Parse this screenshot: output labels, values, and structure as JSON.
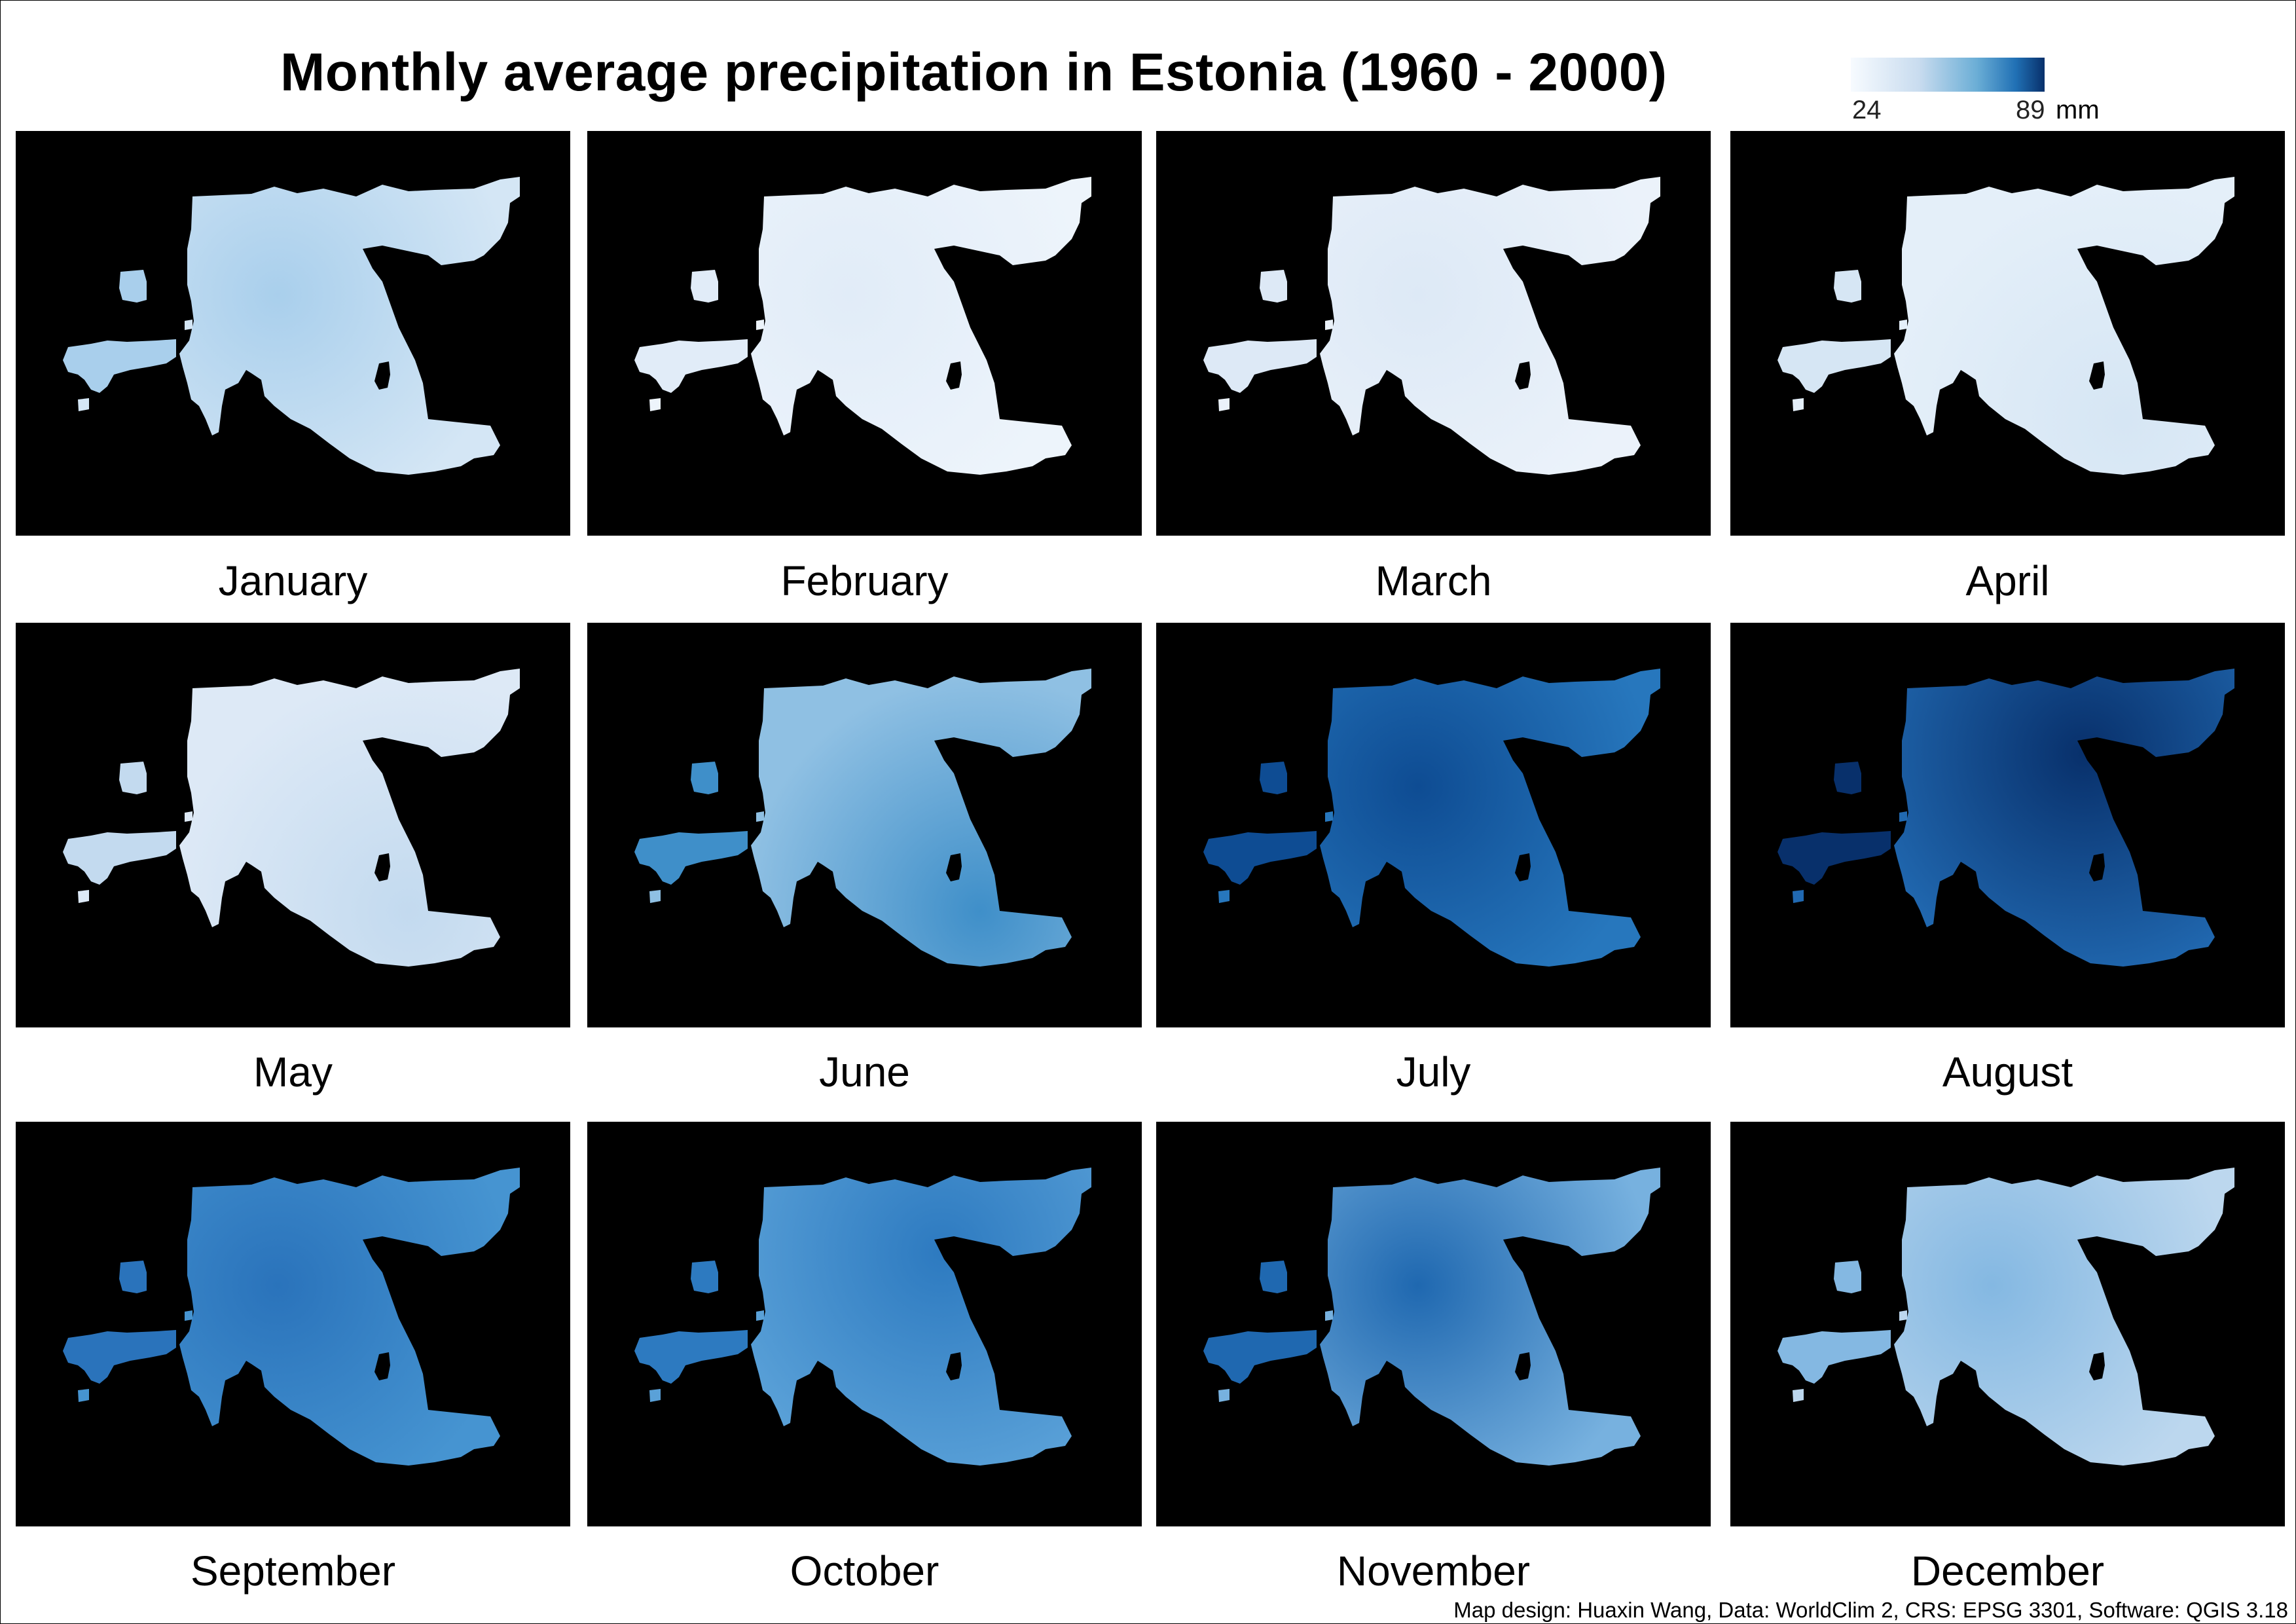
{
  "title": "Monthly average precipitation in Estonia (1960 - 2000)",
  "legend": {
    "min": "24",
    "max": "89",
    "unit": "mm",
    "color_low": "#f7fbff",
    "color_high": "#08306b"
  },
  "panels": [
    {
      "month": "January",
      "base": "#d4e6f5",
      "hot": "#a9cfec",
      "hot_pos": "west"
    },
    {
      "month": "February",
      "base": "#edf4fb",
      "hot": "#e1ecf8",
      "hot_pos": "west"
    },
    {
      "month": "March",
      "base": "#ebf2fa",
      "hot": "#dde9f6",
      "hot_pos": "west"
    },
    {
      "month": "April",
      "base": "#e4eff9",
      "hot": "#d6e6f4",
      "hot_pos": "south"
    },
    {
      "month": "May",
      "base": "#dde9f6",
      "hot": "#c3daef",
      "hot_pos": "south"
    },
    {
      "month": "June",
      "base": "#8fc0e3",
      "hot": "#3f8fc9",
      "hot_pos": "south"
    },
    {
      "month": "July",
      "base": "#2777bd",
      "hot": "#0e4c93",
      "hot_pos": "west"
    },
    {
      "month": "August",
      "base": "#2169b1",
      "hot": "#08306b",
      "hot_pos": "north"
    },
    {
      "month": "September",
      "base": "#4694d1",
      "hot": "#2a73bb",
      "hot_pos": "west"
    },
    {
      "month": "October",
      "base": "#5aa1d8",
      "hot": "#2d7ac0",
      "hot_pos": "north"
    },
    {
      "month": "November",
      "base": "#77b1df",
      "hot": "#1f68b0",
      "hot_pos": "west"
    },
    {
      "month": "December",
      "base": "#bcd7ee",
      "hot": "#84b8e2",
      "hot_pos": "west"
    }
  ],
  "credit": "Map design: Huaxin Wang, Data: WorldClim 2, CRS: EPSG 3301, Software: QGIS 3.18"
}
